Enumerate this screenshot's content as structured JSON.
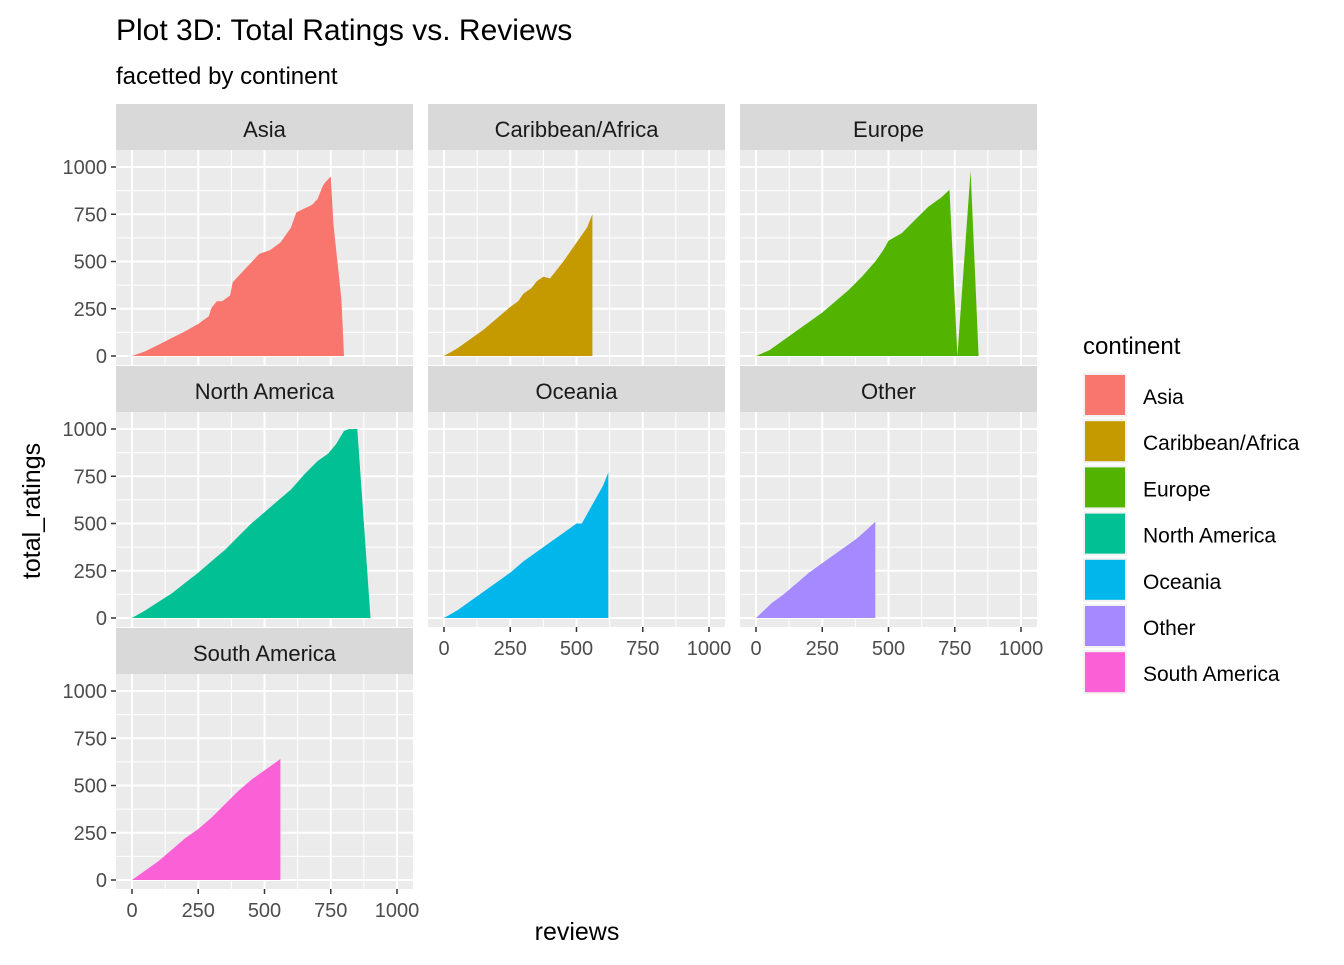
{
  "chart_data": {
    "type": "area",
    "title": "Plot 3D: Total Ratings vs. Reviews",
    "subtitle": "facetted by continent",
    "xlabel": "reviews",
    "ylabel": "total_ratings",
    "xlim": [
      0,
      1000
    ],
    "ylim": [
      0,
      1000
    ],
    "x_ticks": [
      0,
      250,
      500,
      750,
      1000
    ],
    "y_ticks": [
      0,
      250,
      500,
      750,
      1000
    ],
    "grid": true,
    "legend": {
      "title": "continent",
      "position": "right"
    },
    "series": [
      {
        "name": "Asia",
        "color": "#F8766D",
        "points": [
          [
            0,
            0
          ],
          [
            50,
            25
          ],
          [
            100,
            60
          ],
          [
            150,
            95
          ],
          [
            200,
            130
          ],
          [
            250,
            170
          ],
          [
            290,
            210
          ],
          [
            300,
            255
          ],
          [
            320,
            290
          ],
          [
            340,
            290
          ],
          [
            350,
            300
          ],
          [
            370,
            320
          ],
          [
            380,
            390
          ],
          [
            400,
            420
          ],
          [
            440,
            480
          ],
          [
            480,
            540
          ],
          [
            520,
            560
          ],
          [
            560,
            600
          ],
          [
            600,
            680
          ],
          [
            620,
            760
          ],
          [
            680,
            800
          ],
          [
            700,
            830
          ],
          [
            720,
            900
          ],
          [
            730,
            920
          ],
          [
            750,
            950
          ],
          [
            760,
            700
          ],
          [
            790,
            300
          ],
          [
            800,
            0
          ]
        ]
      },
      {
        "name": "Caribbean/Africa",
        "color": "#C49A00",
        "points": [
          [
            0,
            0
          ],
          [
            50,
            40
          ],
          [
            100,
            90
          ],
          [
            150,
            140
          ],
          [
            200,
            200
          ],
          [
            250,
            260
          ],
          [
            280,
            290
          ],
          [
            300,
            330
          ],
          [
            330,
            360
          ],
          [
            350,
            395
          ],
          [
            375,
            420
          ],
          [
            400,
            410
          ],
          [
            450,
            500
          ],
          [
            500,
            600
          ],
          [
            540,
            680
          ],
          [
            560,
            750
          ],
          [
            560,
            0
          ]
        ]
      },
      {
        "name": "Europe",
        "color": "#53B400",
        "points": [
          [
            0,
            0
          ],
          [
            50,
            30
          ],
          [
            100,
            80
          ],
          [
            150,
            130
          ],
          [
            200,
            180
          ],
          [
            250,
            230
          ],
          [
            300,
            290
          ],
          [
            350,
            350
          ],
          [
            400,
            420
          ],
          [
            450,
            500
          ],
          [
            480,
            560
          ],
          [
            500,
            610
          ],
          [
            550,
            650
          ],
          [
            600,
            720
          ],
          [
            650,
            790
          ],
          [
            700,
            840
          ],
          [
            730,
            880
          ],
          [
            760,
            0
          ],
          [
            810,
            980
          ],
          [
            840,
            0
          ]
        ]
      },
      {
        "name": "North America",
        "color": "#00C094",
        "points": [
          [
            0,
            0
          ],
          [
            50,
            40
          ],
          [
            100,
            85
          ],
          [
            150,
            130
          ],
          [
            200,
            185
          ],
          [
            250,
            240
          ],
          [
            300,
            300
          ],
          [
            350,
            360
          ],
          [
            400,
            430
          ],
          [
            450,
            500
          ],
          [
            500,
            560
          ],
          [
            550,
            620
          ],
          [
            600,
            680
          ],
          [
            650,
            760
          ],
          [
            700,
            830
          ],
          [
            740,
            870
          ],
          [
            770,
            920
          ],
          [
            800,
            990
          ],
          [
            820,
            1000
          ],
          [
            850,
            1000
          ],
          [
            900,
            0
          ]
        ]
      },
      {
        "name": "Oceania",
        "color": "#00B6EB",
        "points": [
          [
            0,
            0
          ],
          [
            50,
            40
          ],
          [
            100,
            90
          ],
          [
            150,
            140
          ],
          [
            200,
            190
          ],
          [
            250,
            240
          ],
          [
            300,
            300
          ],
          [
            350,
            350
          ],
          [
            400,
            400
          ],
          [
            450,
            450
          ],
          [
            500,
            500
          ],
          [
            520,
            500
          ],
          [
            600,
            700
          ],
          [
            620,
            770
          ],
          [
            620,
            0
          ]
        ]
      },
      {
        "name": "Other",
        "color": "#A58AFF",
        "points": [
          [
            0,
            0
          ],
          [
            30,
            40
          ],
          [
            60,
            80
          ],
          [
            100,
            120
          ],
          [
            150,
            180
          ],
          [
            200,
            240
          ],
          [
            260,
            300
          ],
          [
            320,
            360
          ],
          [
            380,
            420
          ],
          [
            420,
            470
          ],
          [
            450,
            510
          ],
          [
            450,
            0
          ]
        ]
      },
      {
        "name": "South America",
        "color": "#FB61D7",
        "points": [
          [
            0,
            0
          ],
          [
            50,
            50
          ],
          [
            100,
            100
          ],
          [
            150,
            160
          ],
          [
            200,
            220
          ],
          [
            250,
            270
          ],
          [
            300,
            330
          ],
          [
            350,
            400
          ],
          [
            400,
            470
          ],
          [
            450,
            530
          ],
          [
            500,
            580
          ],
          [
            550,
            630
          ],
          [
            560,
            640
          ],
          [
            560,
            0
          ]
        ]
      }
    ]
  }
}
